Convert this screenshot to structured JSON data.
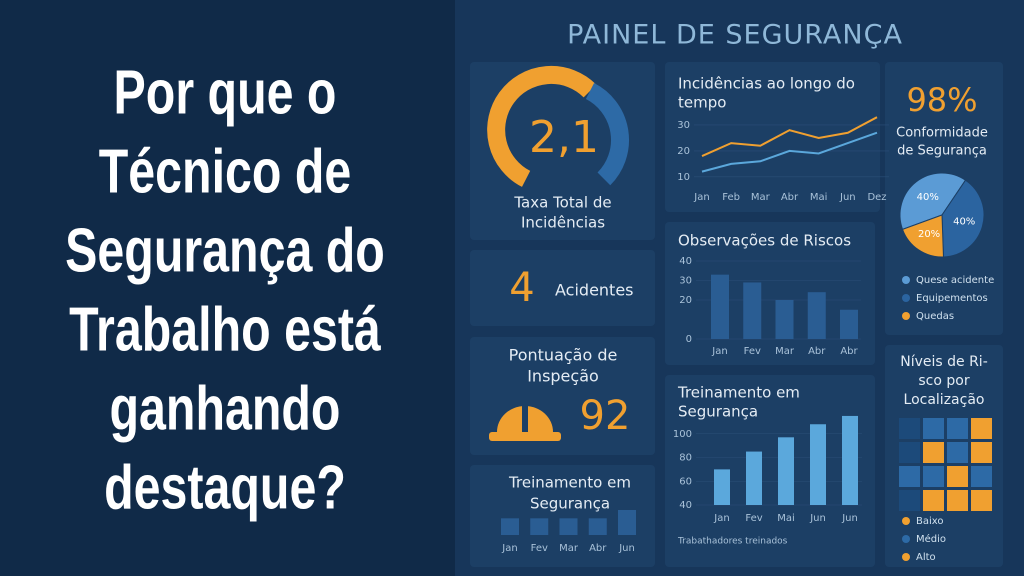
{
  "headline": [
    "Por que o",
    "Técnico de",
    "Segurança do",
    "Trabalho está",
    "ganhando",
    "destaque?"
  ],
  "dashboard": {
    "title": "PAINEL DE SEGURANÇA",
    "incident_rate": {
      "value": "2,1",
      "label_lines": [
        "Taxa Total de",
        "Incidências"
      ]
    },
    "accidents": {
      "value": "4",
      "label": "Acidentes"
    },
    "inspection": {
      "title_lines": [
        "Pontuação de",
        "Inspeção"
      ],
      "value": "92"
    },
    "compliance": {
      "value": "98%",
      "label_lines": [
        "Conformidade",
        "de Segurança"
      ]
    },
    "risk_levels": {
      "title_lines": [
        "Níveis de Ri-",
        "sco por",
        "Localização"
      ],
      "cells": [
        [
          "#1c4a7a",
          "#2d6aa6",
          "#2d6aa6",
          "#f0a030"
        ],
        [
          "#1c4a7a",
          "#f0a030",
          "#2d6aa6",
          "#f0a030"
        ],
        [
          "#2d6aa6",
          "#2d6aa6",
          "#f0a030",
          "#2d6aa6"
        ],
        [
          "#1c4a7a",
          "#f0a030",
          "#f0a030",
          "#f0a030"
        ]
      ],
      "legend": [
        {
          "name": "Baixo",
          "color": "#f0a030"
        },
        {
          "name": "Médio",
          "color": "#2d6aa6"
        },
        {
          "name": "Alto",
          "color": "#f0a030"
        }
      ]
    }
  },
  "chart_data": [
    {
      "type": "line",
      "title_lines": [
        "Incidências ao longo do",
        "tempo"
      ],
      "categories": [
        "Jan",
        "Feb",
        "Mar",
        "Abr",
        "Mai",
        "Jun",
        "Dez"
      ],
      "series": [
        {
          "color": "#f0a030",
          "values": [
            18,
            23,
            22,
            28,
            25,
            27,
            33
          ]
        },
        {
          "color": "#5ba8dc",
          "values": [
            12,
            15,
            16,
            20,
            19,
            23,
            27
          ]
        }
      ],
      "ylim": [
        8,
        35
      ],
      "yticks": [
        10,
        20,
        30
      ]
    },
    {
      "type": "pie",
      "categories": [
        "Quese acidente",
        "Equipementos",
        "Quedas"
      ],
      "values": [
        40,
        40,
        20
      ],
      "value_labels": [
        "40%",
        "40%",
        "20%"
      ],
      "colors": [
        "#5b9bd5",
        "#2b64a0",
        "#f0a030"
      ]
    },
    {
      "type": "bar",
      "title": "Observações de Riscos",
      "categories": [
        "Jan",
        "Fev",
        "Mar",
        "Abr",
        "Abr"
      ],
      "values": [
        33,
        29,
        20,
        24,
        15
      ],
      "color": "#2a5d93",
      "ylim": [
        0,
        40
      ],
      "yticks": [
        0,
        20,
        30,
        40
      ]
    },
    {
      "type": "bar",
      "title_lines": [
        "Treinamento em",
        "Segurança"
      ],
      "categories": [
        "Jan",
        "Fev",
        "Mai",
        "Jun",
        "Jun"
      ],
      "values": [
        70,
        85,
        97,
        108,
        115
      ],
      "color": "#5ba8dc",
      "ylim": [
        40,
        120
      ],
      "yticks": [
        40,
        60,
        80,
        100
      ],
      "footnote": "Trabathadores treinados"
    },
    {
      "type": "bar",
      "title_lines": [
        "Treinamento em",
        "Segurança"
      ],
      "categories": [
        "Jan",
        "Fev",
        "Mar",
        "Abr",
        "Jun"
      ],
      "values": [
        2,
        2,
        2,
        2,
        3
      ],
      "color": "#2a5d93",
      "ylim": [
        0,
        3
      ]
    }
  ]
}
